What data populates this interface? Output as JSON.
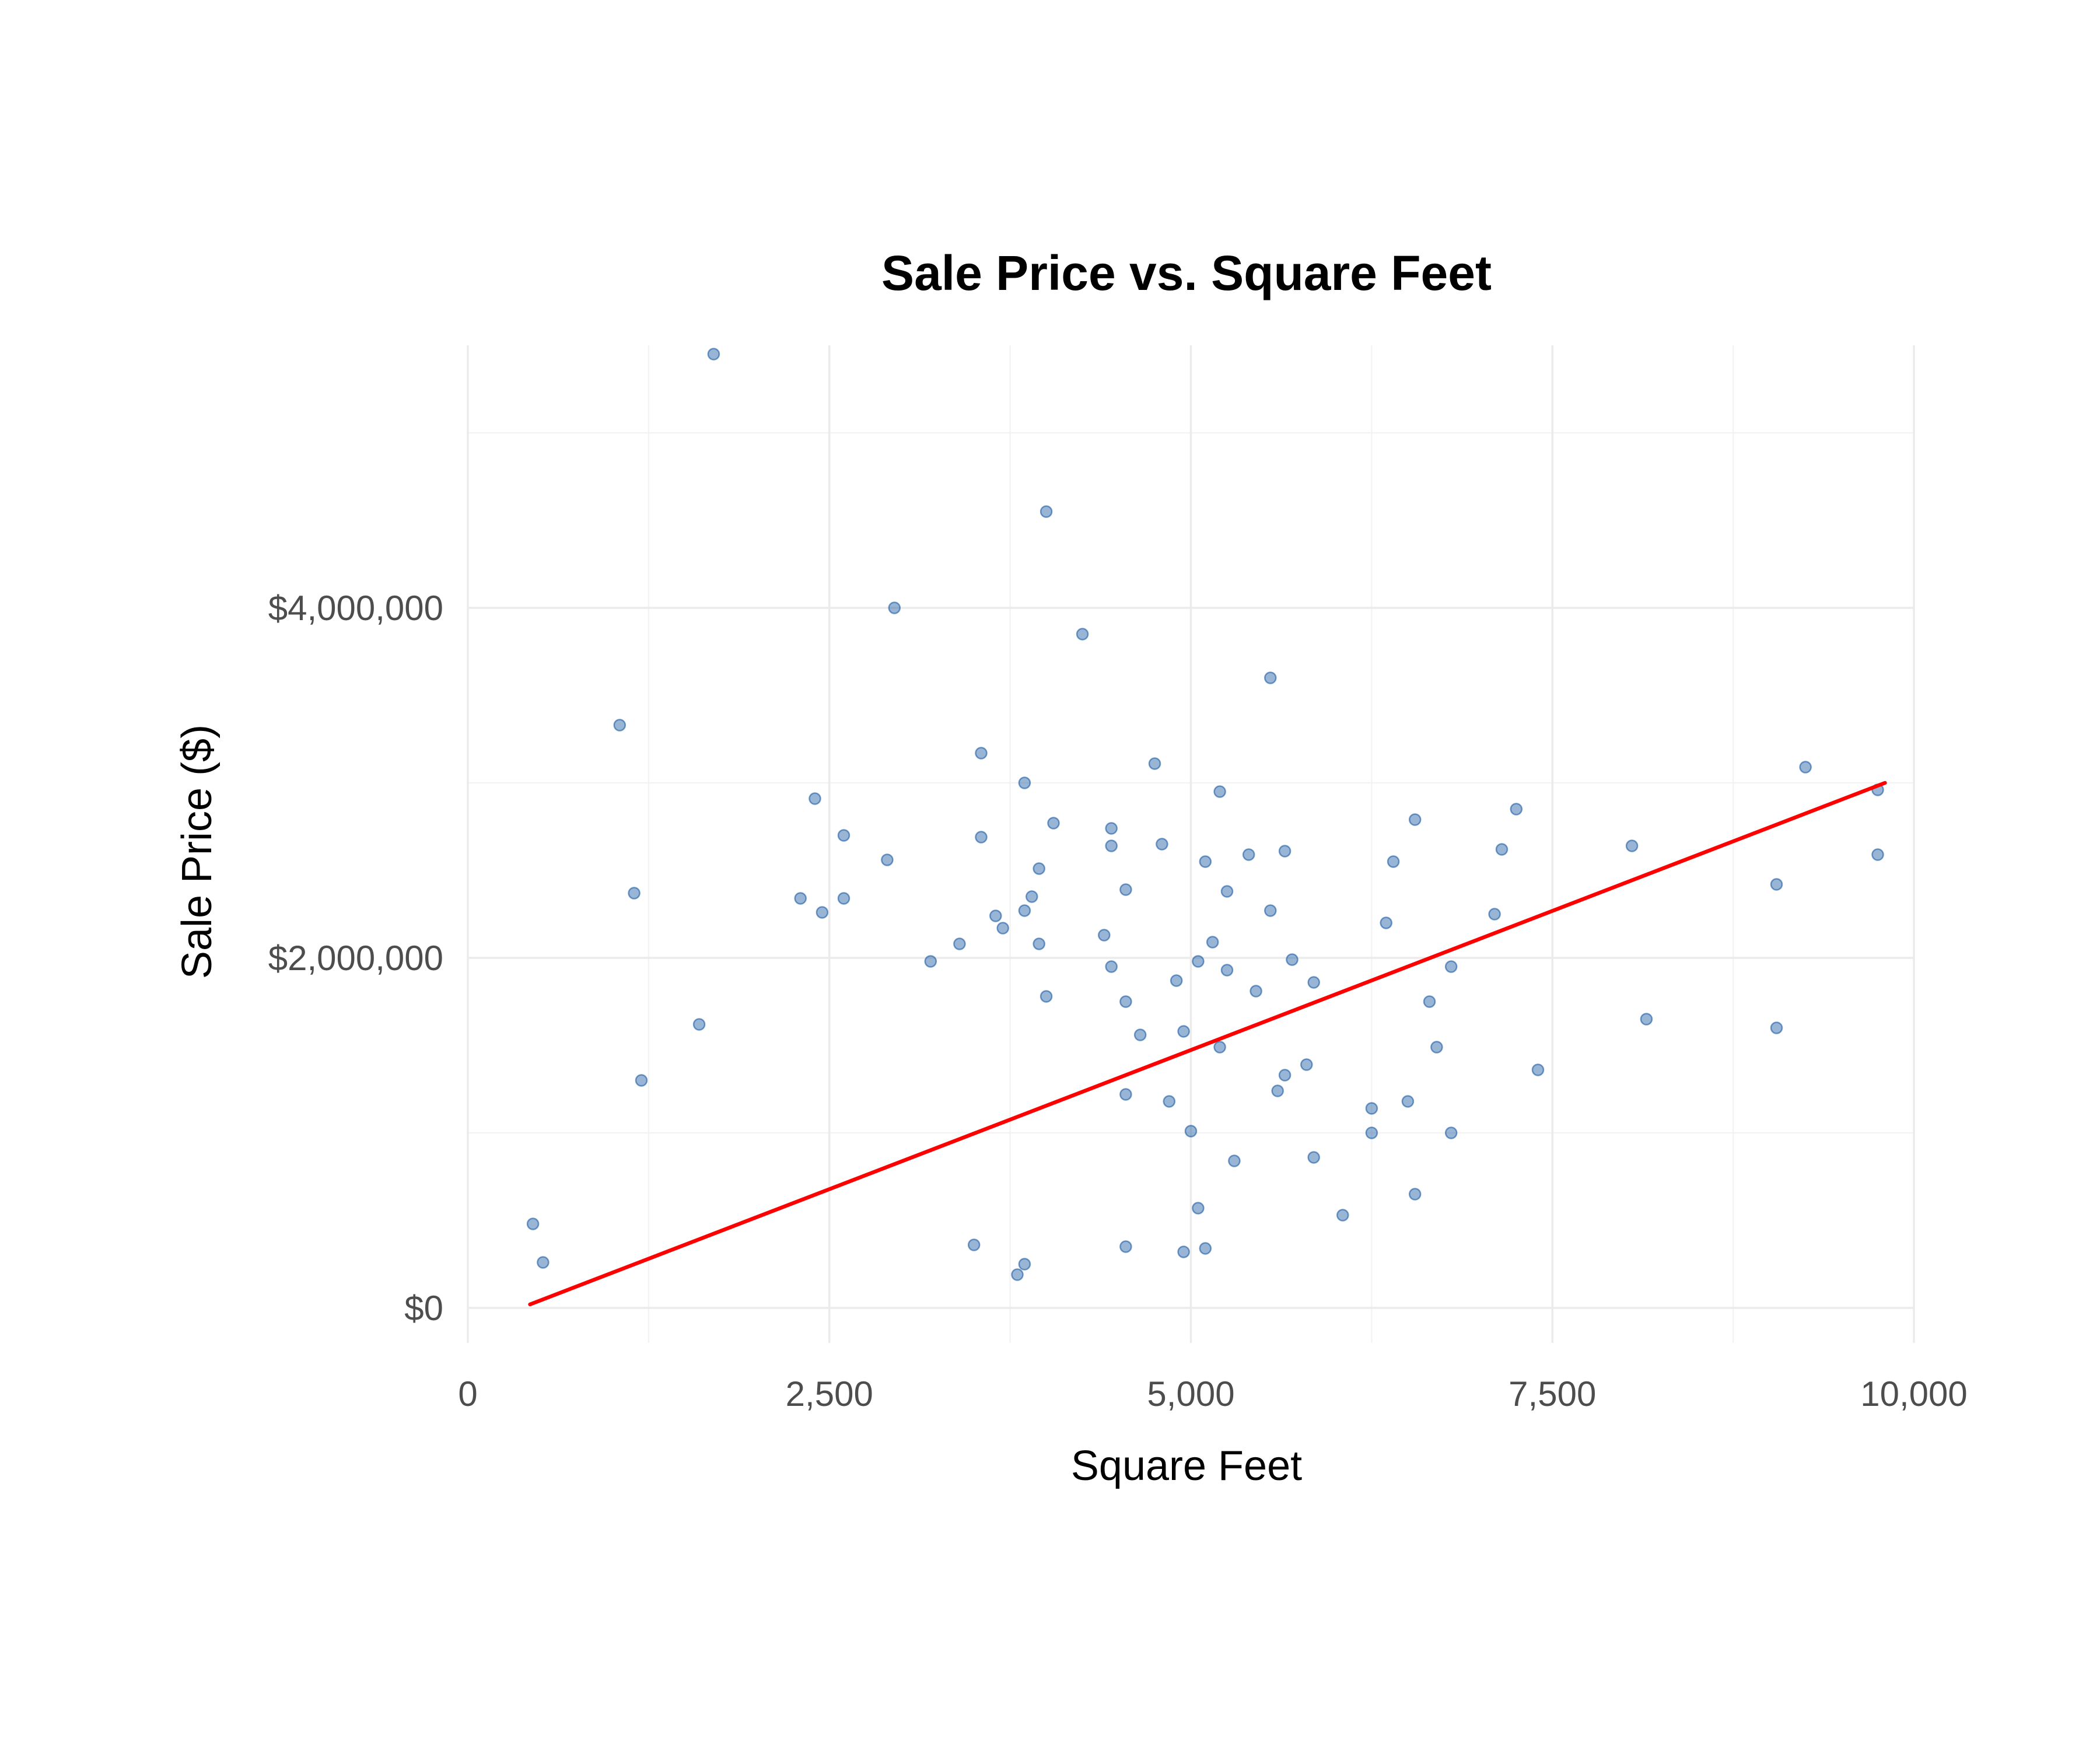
{
  "chart_data": {
    "type": "scatter",
    "title": "Sale Price vs. Square Feet",
    "xlabel": "Square Feet",
    "ylabel": "Sale Price ($)",
    "xlim": [
      0,
      10000
    ],
    "ylim": [
      -200000,
      5500000
    ],
    "x_ticks": [
      {
        "value": 0,
        "label": "0"
      },
      {
        "value": 2500,
        "label": "2,500"
      },
      {
        "value": 5000,
        "label": "5,000"
      },
      {
        "value": 7500,
        "label": "7,500"
      },
      {
        "value": 10000,
        "label": "10,000"
      }
    ],
    "y_ticks": [
      {
        "value": 0,
        "label": "$0"
      },
      {
        "value": 2000000,
        "label": "$2,000,000"
      },
      {
        "value": 4000000,
        "label": "$4,000,000"
      }
    ],
    "grid": true,
    "point_color": "#0b4f9c",
    "trend_color": "#ff0000",
    "trend_line": [
      [
        430,
        20000
      ],
      [
        9800,
        3000000
      ]
    ],
    "series": [
      {
        "values": [
          [
            1700,
            5450000
          ],
          [
            4000,
            4550000
          ],
          [
            2950,
            4000000
          ],
          [
            4250,
            3850000
          ],
          [
            5550,
            3600000
          ],
          [
            1050,
            3330000
          ],
          [
            3550,
            3170000
          ],
          [
            4750,
            3110000
          ],
          [
            9250,
            3090000
          ],
          [
            3850,
            3000000
          ],
          [
            5200,
            2950000
          ],
          [
            9750,
            2960000
          ],
          [
            2400,
            2910000
          ],
          [
            4050,
            2770000
          ],
          [
            4450,
            2740000
          ],
          [
            6550,
            2790000
          ],
          [
            7250,
            2850000
          ],
          [
            3550,
            2690000
          ],
          [
            2600,
            2700000
          ],
          [
            4450,
            2640000
          ],
          [
            4800,
            2650000
          ],
          [
            7150,
            2620000
          ],
          [
            8050,
            2640000
          ],
          [
            9750,
            2590000
          ],
          [
            2900,
            2560000
          ],
          [
            3950,
            2510000
          ],
          [
            5100,
            2550000
          ],
          [
            5400,
            2590000
          ],
          [
            5650,
            2610000
          ],
          [
            6400,
            2550000
          ],
          [
            9050,
            2420000
          ],
          [
            1150,
            2370000
          ],
          [
            2300,
            2340000
          ],
          [
            2600,
            2340000
          ],
          [
            3900,
            2350000
          ],
          [
            4550,
            2390000
          ],
          [
            5250,
            2380000
          ],
          [
            2450,
            2260000
          ],
          [
            3650,
            2240000
          ],
          [
            3850,
            2270000
          ],
          [
            5550,
            2270000
          ],
          [
            7100,
            2250000
          ],
          [
            6350,
            2200000
          ],
          [
            3700,
            2170000
          ],
          [
            4400,
            2130000
          ],
          [
            5150,
            2090000
          ],
          [
            3400,
            2080000
          ],
          [
            3950,
            2080000
          ],
          [
            3200,
            1980000
          ],
          [
            5050,
            1980000
          ],
          [
            5700,
            1990000
          ],
          [
            6800,
            1950000
          ],
          [
            5250,
            1930000
          ],
          [
            4450,
            1950000
          ],
          [
            4900,
            1870000
          ],
          [
            5850,
            1860000
          ],
          [
            5450,
            1810000
          ],
          [
            6650,
            1750000
          ],
          [
            4550,
            1750000
          ],
          [
            4000,
            1780000
          ],
          [
            8150,
            1650000
          ],
          [
            9050,
            1600000
          ],
          [
            4950,
            1580000
          ],
          [
            4650,
            1560000
          ],
          [
            5200,
            1490000
          ],
          [
            6700,
            1490000
          ],
          [
            5800,
            1390000
          ],
          [
            7400,
            1360000
          ],
          [
            5650,
            1330000
          ],
          [
            5600,
            1240000
          ],
          [
            6500,
            1180000
          ],
          [
            6250,
            1140000
          ],
          [
            4550,
            1220000
          ],
          [
            4850,
            1180000
          ],
          [
            6250,
            1000000
          ],
          [
            6800,
            1000000
          ],
          [
            5000,
            1010000
          ],
          [
            5850,
            860000
          ],
          [
            5300,
            840000
          ],
          [
            6550,
            650000
          ],
          [
            6050,
            530000
          ],
          [
            5050,
            570000
          ],
          [
            5100,
            340000
          ],
          [
            4950,
            320000
          ],
          [
            4550,
            350000
          ],
          [
            3800,
            190000
          ],
          [
            1200,
            1300000
          ],
          [
            1600,
            1620000
          ],
          [
            450,
            480000
          ],
          [
            520,
            260000
          ],
          [
            3500,
            360000
          ],
          [
            3850,
            250000
          ]
        ]
      }
    ]
  }
}
